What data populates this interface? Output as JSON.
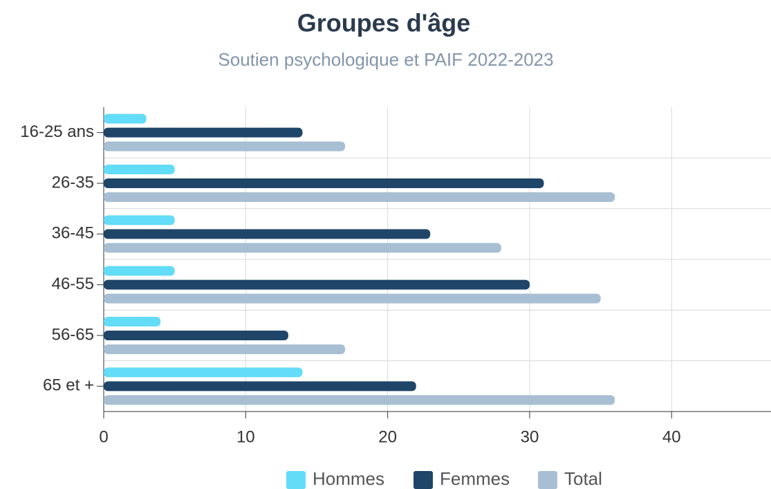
{
  "chart_data": {
    "type": "bar",
    "orientation": "horizontal",
    "title": "Groupes d'âge",
    "subtitle": "Soutien psychologique et PAIF 2022-2023",
    "categories": [
      "16-25 ans",
      "26-35",
      "36-45",
      "46-55",
      "56-65",
      "65 et +"
    ],
    "series": [
      {
        "name": "Hommes",
        "color": "#63dcf7",
        "values": [
          3,
          5,
          5,
          5,
          4,
          14
        ]
      },
      {
        "name": "Femmes",
        "color": "#1f4568",
        "values": [
          14,
          31,
          23,
          30,
          13,
          22
        ]
      },
      {
        "name": "Total",
        "color": "#a8bed2",
        "values": [
          17,
          36,
          28,
          35,
          17,
          36
        ]
      }
    ],
    "xlim": [
      0,
      47
    ],
    "xticks": [
      0,
      10,
      20,
      30,
      40
    ],
    "grid": true,
    "legend": "bottom"
  }
}
